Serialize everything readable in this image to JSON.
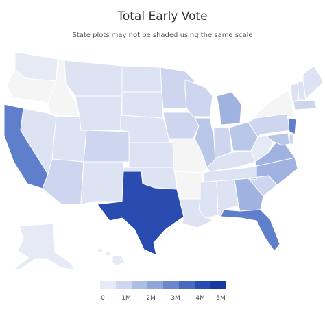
{
  "title": "Total Early Vote",
  "subtitle": "State plots may not be shaded using the same scale",
  "legend": {
    "ticks": [
      "0",
      "1M",
      "2M",
      "3M",
      "4M",
      "5M"
    ],
    "colors": [
      "#e6eaf5",
      "#cdd6ee",
      "#aebfe5",
      "#8fa6dc",
      "#6b88cf",
      "#4a6ac2",
      "#2a4bb0",
      "#163a9f"
    ]
  },
  "colors": {
    "none": "#f5f5f5",
    "c1": "#e6eaf5",
    "c2": "#dde3f3",
    "c3": "#cdd6ee",
    "c4": "#b8c6e8",
    "c5": "#9fb2e0",
    "c6": "#5f7fcc",
    "c7": "#2a4bb0"
  },
  "states": [
    {
      "id": "WA",
      "shade": "c1"
    },
    {
      "id": "OR",
      "shade": "none"
    },
    {
      "id": "CA",
      "shade": "c6"
    },
    {
      "id": "ID",
      "shade": "none"
    },
    {
      "id": "NV",
      "shade": "c2"
    },
    {
      "id": "UT",
      "shade": "c2"
    },
    {
      "id": "AZ",
      "shade": "c3"
    },
    {
      "id": "MT",
      "shade": "c2"
    },
    {
      "id": "WY",
      "shade": "c2"
    },
    {
      "id": "CO",
      "shade": "c3"
    },
    {
      "id": "NM",
      "shade": "c2"
    },
    {
      "id": "ND",
      "shade": "c2"
    },
    {
      "id": "SD",
      "shade": "c2"
    },
    {
      "id": "NE",
      "shade": "c2"
    },
    {
      "id": "KS",
      "shade": "c2"
    },
    {
      "id": "OK",
      "shade": "c2"
    },
    {
      "id": "TX",
      "shade": "c7"
    },
    {
      "id": "MN",
      "shade": "c3"
    },
    {
      "id": "IA",
      "shade": "c3"
    },
    {
      "id": "MO",
      "shade": "none"
    },
    {
      "id": "AR",
      "shade": "none"
    },
    {
      "id": "LA",
      "shade": "c2"
    },
    {
      "id": "WI",
      "shade": "c3"
    },
    {
      "id": "IL",
      "shade": "c4"
    },
    {
      "id": "MI",
      "shade": "c5"
    },
    {
      "id": "IN",
      "shade": "c3"
    },
    {
      "id": "OH",
      "shade": "c4"
    },
    {
      "id": "KY",
      "shade": "c2"
    },
    {
      "id": "TN",
      "shade": "c2"
    },
    {
      "id": "MS",
      "shade": "c2"
    },
    {
      "id": "AL",
      "shade": "c2"
    },
    {
      "id": "GA",
      "shade": "c5"
    },
    {
      "id": "FL",
      "shade": "c6"
    },
    {
      "id": "SC",
      "shade": "c3"
    },
    {
      "id": "NC",
      "shade": "c5"
    },
    {
      "id": "VA",
      "shade": "c5"
    },
    {
      "id": "WV",
      "shade": "c1"
    },
    {
      "id": "PA",
      "shade": "c3"
    },
    {
      "id": "NY",
      "shade": "none"
    },
    {
      "id": "VT",
      "shade": "c2"
    },
    {
      "id": "NH",
      "shade": "c2"
    },
    {
      "id": "ME",
      "shade": "c2"
    },
    {
      "id": "MA",
      "shade": "c3"
    },
    {
      "id": "NJ",
      "shade": "c6"
    },
    {
      "id": "MD",
      "shade": "c4"
    },
    {
      "id": "DE",
      "shade": "c3"
    },
    {
      "id": "AK",
      "shade": "c1"
    },
    {
      "id": "HI",
      "shade": "c1"
    }
  ]
}
